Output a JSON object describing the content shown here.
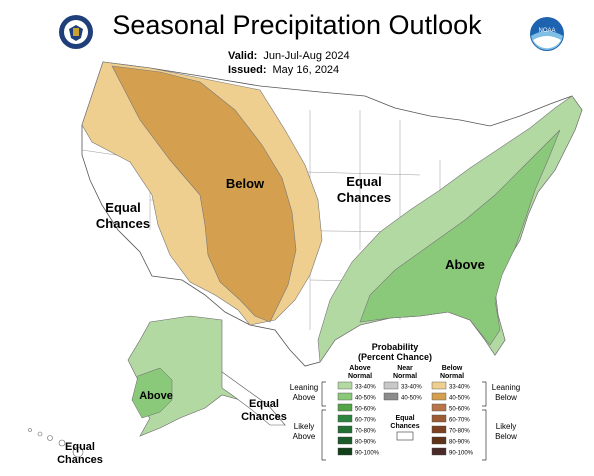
{
  "header": {
    "title": "Seasonal Precipitation Outlook",
    "valid_label": "Valid:",
    "valid_value": "Jun-Jul-Aug 2024",
    "issued_label": "Issued:",
    "issued_value": "May 16, 2024"
  },
  "logos": {
    "left": "doc-seal-icon",
    "right": "noaa-logo-icon",
    "noaa_text": "NOAA"
  },
  "regions": {
    "below": "Below",
    "above": "Above",
    "equal_west_1": "Equal",
    "equal_west_2": "Chances",
    "equal_central_1": "Equal",
    "equal_central_2": "Chances",
    "alaska_above": "Above",
    "alaska_equal_1": "Equal",
    "alaska_equal_2": "Chances",
    "hawaii_equal_1": "Equal",
    "hawaii_equal_2": "Chances"
  },
  "legend": {
    "title_1": "Probability",
    "title_2": "(Percent Chance)",
    "col_above_1": "Above",
    "col_above_2": "Normal",
    "col_near_1": "Near",
    "col_near_2": "Normal",
    "col_below_1": "Below",
    "col_below_2": "Normal",
    "leaning_above_1": "Leaning",
    "leaning_above_2": "Above",
    "likely_above_1": "Likely",
    "likely_above_2": "Above",
    "leaning_below_1": "Leaning",
    "leaning_below_2": "Below",
    "likely_below_1": "Likely",
    "likely_below_2": "Below",
    "equal_1": "Equal",
    "equal_2": "Chances",
    "above_rows": [
      "33-40%",
      "40-50%",
      "50-60%",
      "60-70%",
      "70-80%",
      "80-90%",
      "90-100%"
    ],
    "near_rows": [
      "33-40%",
      "40-50%"
    ],
    "below_rows": [
      "33-40%",
      "40-50%",
      "50-60%",
      "60-70%",
      "70-80%",
      "80-90%",
      "90-100%"
    ],
    "colors": {
      "above": [
        "#b3d9a3",
        "#8bc97a",
        "#52a447",
        "#2e8540",
        "#236f34",
        "#1b5a29",
        "#114019"
      ],
      "near": [
        "#c8c8c8",
        "#8c8c8c"
      ],
      "below": [
        "#efcf8f",
        "#d4a050",
        "#b8754a",
        "#9c5a35",
        "#7d4222",
        "#5f3319",
        "#4a2a28"
      ]
    }
  }
}
